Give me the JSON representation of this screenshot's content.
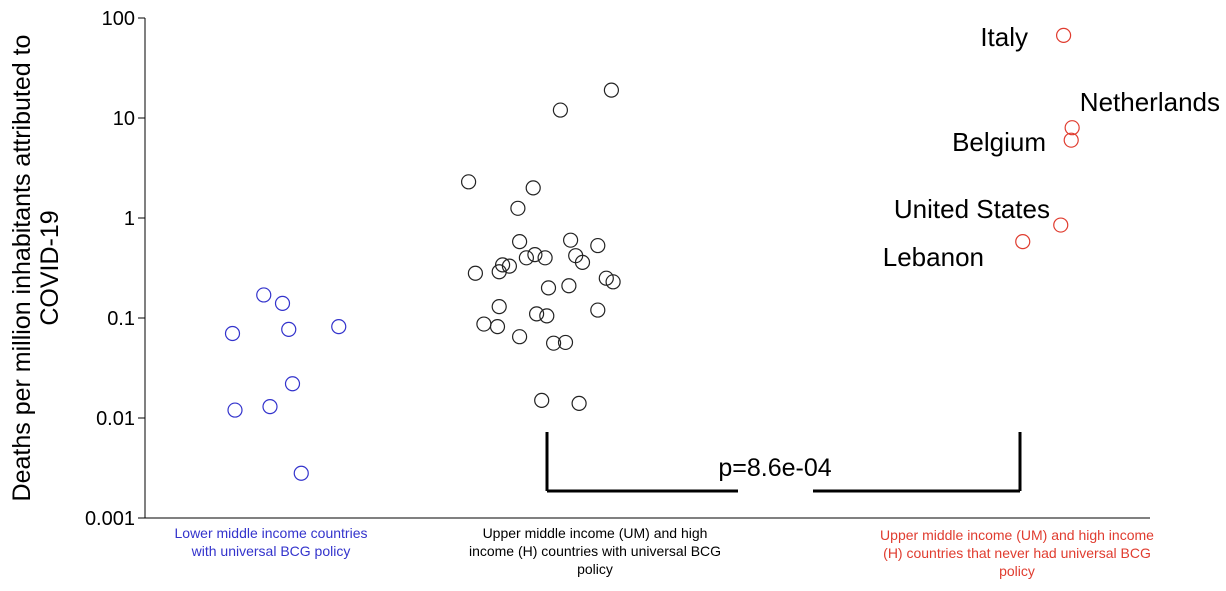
{
  "chart_data": {
    "type": "scatter",
    "title": "",
    "ylabel_lines": [
      "Deaths per million inhabitants attributed to",
      "COVID-19"
    ],
    "yscale": "log",
    "ylim": [
      0.001,
      100
    ],
    "yticks": [
      {
        "value": 0.001,
        "label": "0.001"
      },
      {
        "value": 0.01,
        "label": "0.01"
      },
      {
        "value": 0.1,
        "label": "0.1"
      },
      {
        "value": 1,
        "label": "1"
      },
      {
        "value": 10,
        "label": "10"
      },
      {
        "value": 100,
        "label": "100"
      }
    ],
    "grid": false,
    "marker": "open-circle",
    "groups": [
      {
        "label_lines": [
          "Lower middle income countries",
          "with universal BCG policy"
        ],
        "color": "#3333cc",
        "points": [
          {
            "jitter": 0.1,
            "y": 0.07
          },
          {
            "jitter": 0.35,
            "y": 0.17
          },
          {
            "jitter": 0.5,
            "y": 0.14
          },
          {
            "jitter": 0.55,
            "y": 0.077
          },
          {
            "jitter": 0.95,
            "y": 0.082
          },
          {
            "jitter": 0.12,
            "y": 0.012
          },
          {
            "jitter": 0.4,
            "y": 0.013
          },
          {
            "jitter": 0.58,
            "y": 0.022
          },
          {
            "jitter": 0.65,
            "y": 0.0028
          }
        ]
      },
      {
        "label_lines": [
          "Upper middle income (UM)  and high",
          "income (H) countries with universal BCG",
          "policy"
        ],
        "color": "#222222",
        "points": [
          {
            "jitter": 0.92,
            "y": 19
          },
          {
            "jitter": 0.62,
            "y": 12
          },
          {
            "jitter": 0.08,
            "y": 2.3
          },
          {
            "jitter": 0.46,
            "y": 2.0
          },
          {
            "jitter": 0.37,
            "y": 1.25
          },
          {
            "jitter": 0.38,
            "y": 0.58
          },
          {
            "jitter": 0.68,
            "y": 0.6
          },
          {
            "jitter": 0.84,
            "y": 0.53
          },
          {
            "jitter": 0.47,
            "y": 0.43
          },
          {
            "jitter": 0.42,
            "y": 0.4
          },
          {
            "jitter": 0.53,
            "y": 0.4
          },
          {
            "jitter": 0.71,
            "y": 0.42
          },
          {
            "jitter": 0.75,
            "y": 0.36
          },
          {
            "jitter": 0.28,
            "y": 0.34
          },
          {
            "jitter": 0.32,
            "y": 0.33
          },
          {
            "jitter": 0.26,
            "y": 0.29
          },
          {
            "jitter": 0.12,
            "y": 0.28
          },
          {
            "jitter": 0.89,
            "y": 0.25
          },
          {
            "jitter": 0.93,
            "y": 0.23
          },
          {
            "jitter": 0.67,
            "y": 0.21
          },
          {
            "jitter": 0.55,
            "y": 0.2
          },
          {
            "jitter": 0.26,
            "y": 0.13
          },
          {
            "jitter": 0.84,
            "y": 0.12
          },
          {
            "jitter": 0.48,
            "y": 0.11
          },
          {
            "jitter": 0.54,
            "y": 0.105
          },
          {
            "jitter": 0.17,
            "y": 0.087
          },
          {
            "jitter": 0.25,
            "y": 0.082
          },
          {
            "jitter": 0.38,
            "y": 0.065
          },
          {
            "jitter": 0.58,
            "y": 0.056
          },
          {
            "jitter": 0.65,
            "y": 0.057
          },
          {
            "jitter": 0.51,
            "y": 0.015
          },
          {
            "jitter": 0.73,
            "y": 0.014
          }
        ]
      },
      {
        "label_lines": [
          "Upper middle income (UM)  and high income",
          "(H) countries that never had universal BCG",
          "policy"
        ],
        "color": "#e03c2f",
        "points": [
          {
            "jitter": 0.88,
            "y": 67,
            "label": "Italy"
          },
          {
            "jitter": 0.97,
            "y": 8.0,
            "label": "Netherlands"
          },
          {
            "jitter": 0.96,
            "y": 6.0,
            "label": "Belgium"
          },
          {
            "jitter": 0.85,
            "y": 0.85,
            "label": "United States"
          },
          {
            "jitter": 0.45,
            "y": 0.58,
            "label": "Lebanon"
          }
        ]
      }
    ],
    "annotation": {
      "text": "p=8.6e-04",
      "between_groups": [
        1,
        2
      ]
    }
  }
}
